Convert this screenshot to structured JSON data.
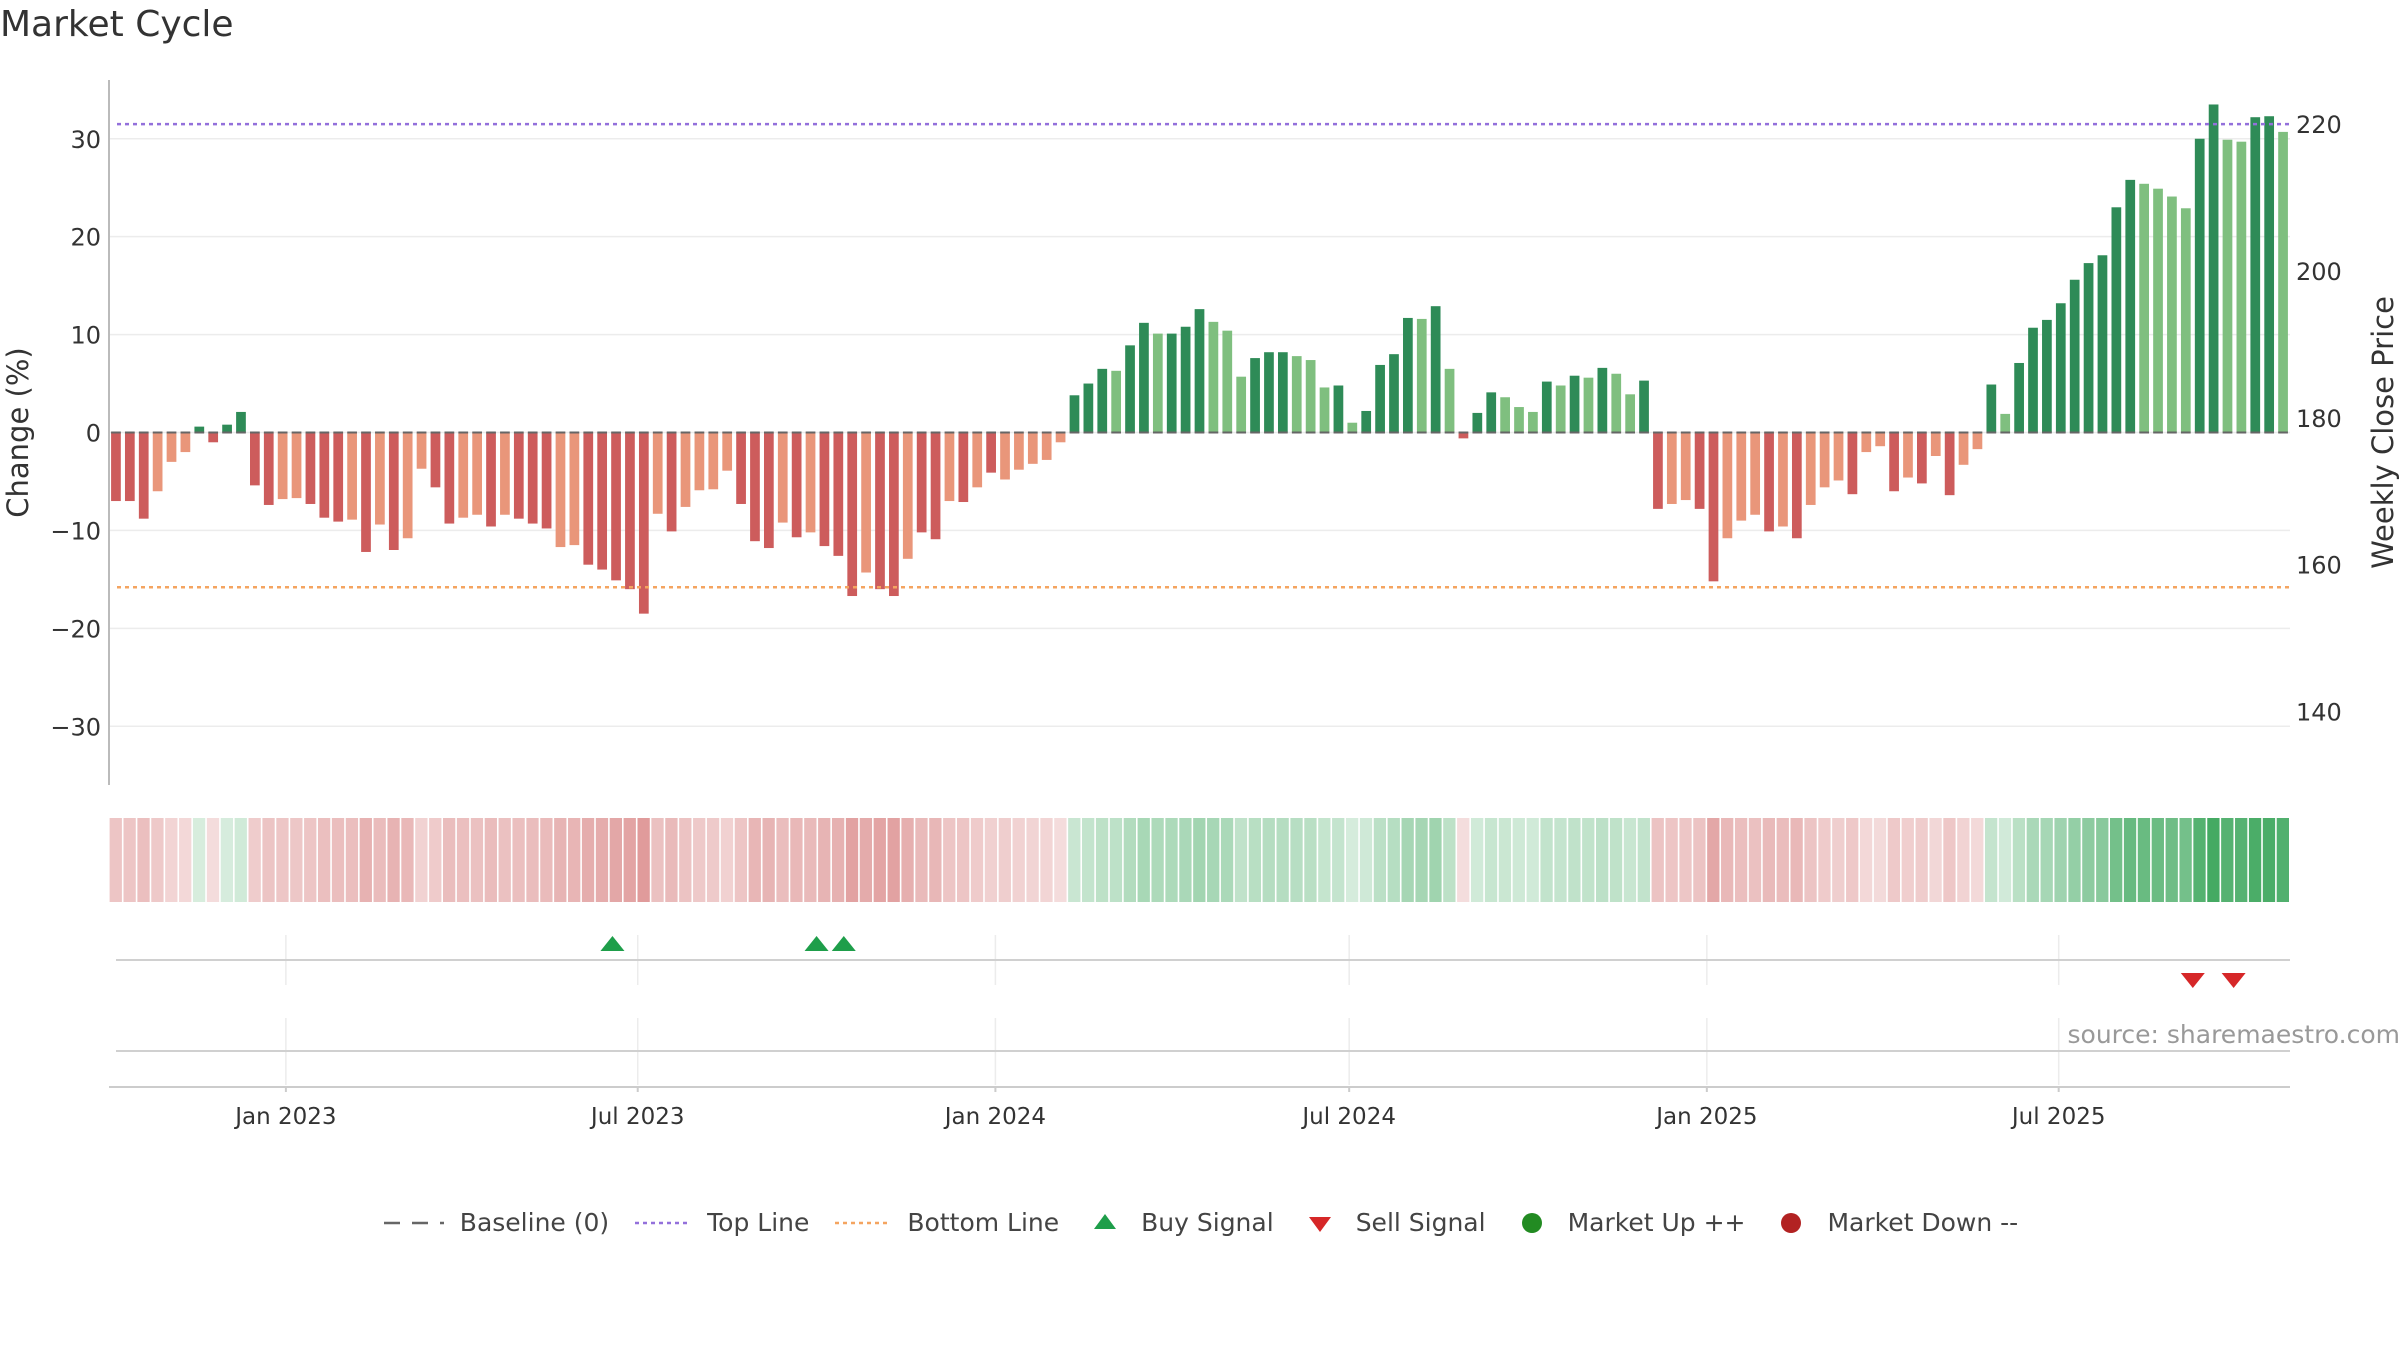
{
  "title": "Market Cycle",
  "source": "source: sharemaestro.com",
  "colors": {
    "strongUp": "#2e8b57",
    "lightUp": "#7fbf7f",
    "strongDown": "#cd5c5c",
    "lightDown": "#e9967a",
    "topLine": "#9370db",
    "bottomLine": "#f4a460",
    "buy": "#1e9e4a",
    "sell": "#d62728",
    "marketUp": "#228b22",
    "marketDown": "#b22222"
  },
  "legend": {
    "baseline": "Baseline (0)",
    "top": "Top Line",
    "bottom": "Bottom Line",
    "buy": "Buy Signal",
    "sell": "Sell Signal",
    "up": "Market Up ++",
    "down": "Market Down --"
  },
  "chart_data": {
    "type": "bar",
    "title": "Market Cycle",
    "ylabel": "Change (%)",
    "ylabel_right": "Weekly Close Price",
    "ylim": [
      -36,
      36
    ],
    "ylim_right": [
      130,
      226
    ],
    "yticks": [
      -30,
      -20,
      -10,
      0,
      10,
      20,
      30
    ],
    "yticks_right": [
      140,
      160,
      180,
      200,
      220
    ],
    "top_line": 31.5,
    "bottom_line": -15.8,
    "x_start": "2022-10-02",
    "x_end": "2025-10-28",
    "x_ticks": [
      {
        "date": "2023-01-01",
        "label": "Jan 2023"
      },
      {
        "date": "2023-07-01",
        "label": "Jul 2023"
      },
      {
        "date": "2024-01-01",
        "label": "Jan 2024"
      },
      {
        "date": "2024-07-01",
        "label": "Jul 2024"
      },
      {
        "date": "2025-01-01",
        "label": "Jan 2025"
      },
      {
        "date": "2025-07-01",
        "label": "Jul 2025"
      }
    ],
    "weekly_change": [
      -7,
      -7,
      -8.8,
      -6,
      -3,
      -2,
      0.6,
      -1,
      0.8,
      2.1,
      -5.4,
      -7.4,
      -6.8,
      -6.7,
      -7.3,
      -8.7,
      -9.1,
      -8.9,
      -12.2,
      -9.4,
      -12,
      -10.8,
      -3.7,
      -5.6,
      -9.3,
      -8.7,
      -8.4,
      -9.6,
      -8.4,
      -8.8,
      -9.3,
      -9.8,
      -11.7,
      -11.5,
      -13.5,
      -14,
      -15.1,
      -16,
      -18.5,
      -8.3,
      -10.1,
      -7.6,
      -5.9,
      -5.8,
      -3.9,
      -7.3,
      -11.1,
      -11.8,
      -9.2,
      -10.7,
      -10.2,
      -11.6,
      -12.6,
      -16.7,
      -14.3,
      -16,
      -16.7,
      -12.9,
      -10.2,
      -10.9,
      -7,
      -7.1,
      -5.6,
      -4.1,
      -4.8,
      -3.8,
      -3.2,
      -2.8,
      -1,
      3.8,
      5,
      6.5,
      6.3,
      8.9,
      11.2,
      10.1,
      10.1,
      10.8,
      12.6,
      11.3,
      10.4,
      5.7,
      7.6,
      8.2,
      8.2,
      7.8,
      7.4,
      4.6,
      4.8,
      1,
      2.2,
      6.9,
      8,
      11.7,
      11.6,
      12.9,
      6.5,
      -0.6,
      2,
      4.1,
      3.6,
      2.6,
      2.1,
      5.2,
      4.8,
      5.8,
      5.6,
      6.6,
      6,
      3.9,
      5.3,
      -7.8,
      -7.3,
      -6.9,
      -7.8,
      -15.2,
      -10.8,
      -9,
      -8.4,
      -10.1,
      -9.6,
      -10.8,
      -7.4,
      -5.6,
      -4.9,
      -6.3,
      -2,
      -1.4,
      -6,
      -4.6,
      -5.2,
      -2.4,
      -6.4,
      -3.3,
      -1.7,
      4.9,
      1.9,
      7.1,
      10.7,
      11.5,
      13.2,
      15.6,
      17.3,
      18.1,
      23,
      25.8,
      25.4,
      24.9,
      24.1,
      22.9,
      30,
      33.5,
      29.9,
      29.7,
      32.2,
      32.3,
      30.7
    ],
    "weekly_tone": [
      "d",
      "d",
      "d",
      "l",
      "l",
      "l",
      "u",
      "d",
      "u",
      "u",
      "d",
      "d",
      "l",
      "l",
      "d",
      "d",
      "d",
      "l",
      "d",
      "l",
      "d",
      "l",
      "l",
      "d",
      "d",
      "l",
      "l",
      "d",
      "l",
      "d",
      "d",
      "d",
      "l",
      "l",
      "d",
      "d",
      "d",
      "d",
      "d",
      "l",
      "d",
      "l",
      "l",
      "l",
      "l",
      "d",
      "d",
      "d",
      "l",
      "d",
      "l",
      "d",
      "d",
      "d",
      "l",
      "d",
      "d",
      "l",
      "d",
      "d",
      "l",
      "d",
      "l",
      "d",
      "l",
      "l",
      "l",
      "l",
      "l",
      "u",
      "u",
      "u",
      "v",
      "u",
      "u",
      "v",
      "u",
      "u",
      "u",
      "v",
      "v",
      "v",
      "u",
      "u",
      "u",
      "v",
      "v",
      "v",
      "u",
      "v",
      "u",
      "u",
      "u",
      "u",
      "v",
      "u",
      "v",
      "d",
      "u",
      "u",
      "v",
      "v",
      "v",
      "u",
      "v",
      "u",
      "v",
      "u",
      "v",
      "v",
      "u",
      "d",
      "l",
      "l",
      "d",
      "d",
      "l",
      "l",
      "l",
      "d",
      "l",
      "d",
      "l",
      "l",
      "l",
      "d",
      "l",
      "l",
      "d",
      "l",
      "d",
      "l",
      "d",
      "l",
      "l",
      "u",
      "v",
      "u",
      "u",
      "u",
      "u",
      "u",
      "u",
      "u",
      "u",
      "u",
      "v",
      "v",
      "v",
      "v",
      "u",
      "u",
      "v",
      "v",
      "u",
      "u",
      "v"
    ],
    "buy_signals": [
      "2023-06-18",
      "2023-10-01",
      "2023-10-15"
    ],
    "sell_signals": [
      "2025-09-08",
      "2025-09-29"
    ]
  }
}
